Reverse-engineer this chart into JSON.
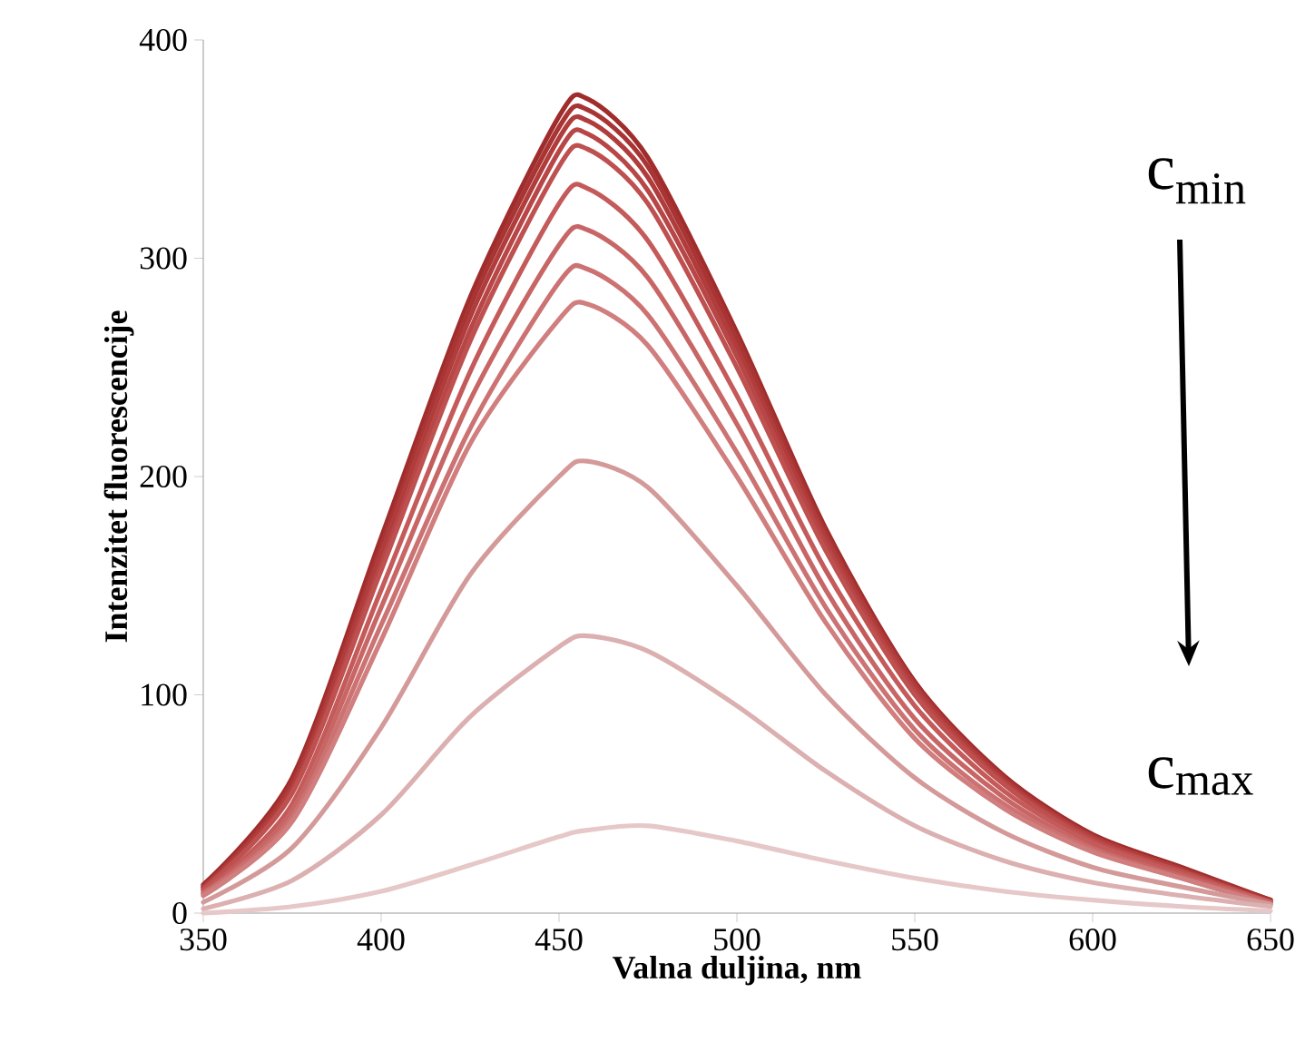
{
  "chart_data": {
    "type": "line",
    "xlabel": "Valna duljina, nm",
    "ylabel": "Intenzitet fluorescencije",
    "x": [
      350,
      375,
      400,
      425,
      450,
      458,
      475,
      500,
      525,
      550,
      575,
      600,
      625,
      650
    ],
    "xlim": [
      350,
      650
    ],
    "ylim": [
      0,
      400
    ],
    "xticks": [
      350,
      400,
      450,
      500,
      550,
      600,
      650
    ],
    "yticks": [
      0,
      100,
      200,
      300,
      400
    ],
    "marker": "none",
    "line_style": "solid",
    "annotations": [
      "c$_{min}$",
      "c$_{max}$"
    ],
    "series": [
      {
        "color": "#a02c2c",
        "values": [
          13,
          62,
          172,
          282,
          365,
          373,
          346,
          266,
          176,
          106,
          63,
          36,
          21,
          6
        ]
      },
      {
        "color": "#a83434",
        "values": [
          12,
          60,
          168,
          278,
          360,
          368,
          342,
          263,
          174,
          105,
          62,
          35,
          20,
          6
        ]
      },
      {
        "color": "#b03c3c",
        "values": [
          12,
          58,
          165,
          273,
          355,
          363,
          337,
          259,
          172,
          104,
          61,
          35,
          20,
          5
        ]
      },
      {
        "color": "#b84646",
        "values": [
          11,
          56,
          160,
          267,
          349,
          357,
          331,
          255,
          169,
          102,
          60,
          34,
          19,
          5
        ]
      },
      {
        "color": "#be5050",
        "values": [
          11,
          55,
          157,
          262,
          342,
          350,
          325,
          250,
          166,
          100,
          59,
          33,
          19,
          5
        ]
      },
      {
        "color": "#c45a5a",
        "values": [
          10,
          50,
          148,
          248,
          325,
          332,
          308,
          237,
          157,
          95,
          56,
          32,
          18,
          5
        ]
      },
      {
        "color": "#c86666",
        "values": [
          9,
          47,
          140,
          235,
          306,
          313,
          291,
          224,
          148,
          89,
          53,
          30,
          17,
          5
        ]
      },
      {
        "color": "#cc7272",
        "values": [
          9,
          44,
          132,
          222,
          289,
          295,
          274,
          211,
          140,
          84,
          50,
          29,
          16,
          4
        ]
      },
      {
        "color": "#d07e7e",
        "values": [
          8,
          42,
          125,
          215,
          272,
          279,
          260,
          200,
          133,
          80,
          48,
          28,
          16,
          4
        ]
      },
      {
        "color": "#d49a9a",
        "values": [
          5,
          30,
          85,
          155,
          200,
          207,
          195,
          150,
          100,
          62,
          37,
          21,
          12,
          4
        ]
      },
      {
        "color": "#dcb0b0",
        "values": [
          2,
          15,
          45,
          90,
          122,
          127,
          120,
          95,
          65,
          40,
          24,
          14,
          8,
          3
        ]
      },
      {
        "color": "#e6c8c8",
        "values": [
          0,
          3,
          10,
          22,
          35,
          38,
          40,
          33,
          24,
          16,
          10,
          6,
          3,
          1
        ]
      }
    ]
  }
}
